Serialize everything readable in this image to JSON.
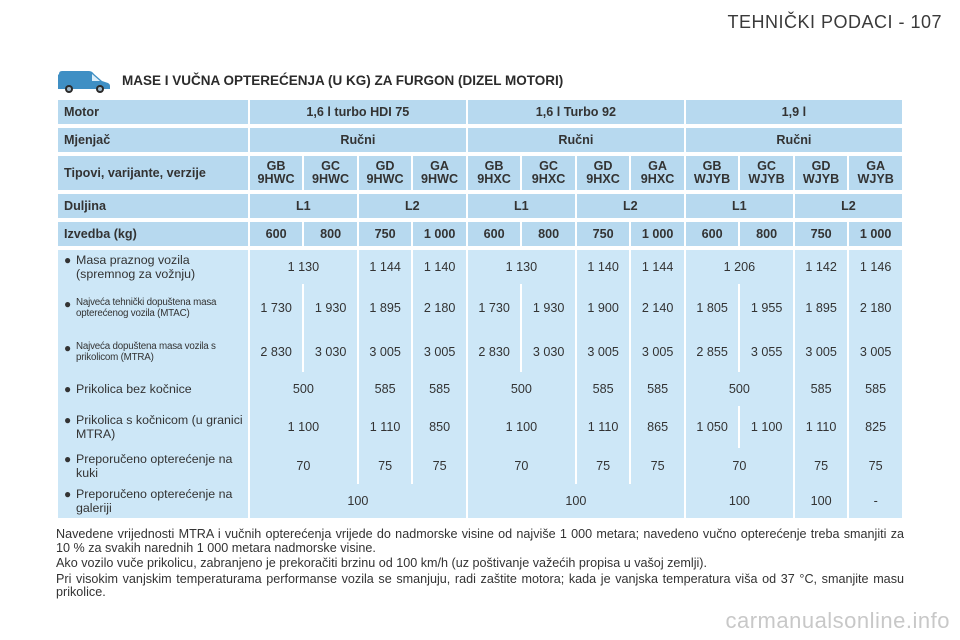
{
  "page_header": "TEHNIČKI PODACI - 107",
  "section_title": "MASE I VUČNA OPTEREĆENJA (U KG) ZA FURGON (DIZEL MOTORI)",
  "icons": {
    "van": "van-icon"
  },
  "colors": {
    "header_row": "#b7d9ef",
    "data_row": "#cde7f7"
  },
  "table": {
    "motor": {
      "label": "Motor",
      "values": [
        "1,6 l turbo HDI 75",
        "1,6 l Turbo 92",
        "1,9 l"
      ]
    },
    "mjenjac": {
      "label": "Mjenjač",
      "values": [
        "Ručni",
        "Ručni",
        "Ručni"
      ]
    },
    "tipovi": {
      "label": "Tipovi, varijante, verzije",
      "values": [
        [
          "GB",
          "9HWC"
        ],
        [
          "GC",
          "9HWC"
        ],
        [
          "GD",
          "9HWC"
        ],
        [
          "GA",
          "9HWC"
        ],
        [
          "GB",
          "9HXC"
        ],
        [
          "GC",
          "9HXC"
        ],
        [
          "GD",
          "9HXC"
        ],
        [
          "GA",
          "9HXC"
        ],
        [
          "GB",
          "WJYB"
        ],
        [
          "GC",
          "WJYB"
        ],
        [
          "GD",
          "WJYB"
        ],
        [
          "GA",
          "WJYB"
        ]
      ]
    },
    "duljina": {
      "label": "Duljina",
      "values": [
        "L1",
        "L2",
        "L1",
        "L2",
        "L1",
        "L2"
      ]
    },
    "izvedba": {
      "label": "Izvedba (kg)",
      "values": [
        "600",
        "800",
        "750",
        "1 000",
        "600",
        "800",
        "750",
        "1 000",
        "600",
        "800",
        "750",
        "1 000"
      ]
    },
    "masa_praznog": {
      "label": "Masa praznog vozila (spremnog za vožnju)",
      "values": [
        "1 130",
        "1 144",
        "1 140",
        "1 130",
        "1 140",
        "1 144",
        "1 206",
        "1 142",
        "1 146"
      ]
    },
    "mtac": {
      "label": "Najveća tehnički dopuštena masa opterećenog vozila (MTAC)",
      "values": [
        "1 730",
        "1 930",
        "1 895",
        "2 180",
        "1 730",
        "1 930",
        "1 900",
        "2 140",
        "1 805",
        "1 955",
        "1 895",
        "2 180"
      ]
    },
    "mtra": {
      "label": "Najveća dopuštena masa vozila s prikolicom (MTRA)",
      "values": [
        "2 830",
        "3 030",
        "3 005",
        "3 005",
        "2 830",
        "3 030",
        "3 005",
        "3 005",
        "2 855",
        "3 055",
        "3 005",
        "3 005"
      ]
    },
    "bez_kocnice": {
      "label": "Prikolica bez kočnice",
      "values": [
        "500",
        "585",
        "585",
        "500",
        "585",
        "585",
        "500",
        "585",
        "585"
      ]
    },
    "s_kocnicom": {
      "label": "Prikolica s kočnicom (u granici MTRA)",
      "values": [
        "1 100",
        "1 110",
        "850",
        "1 100",
        "1 110",
        "865",
        "1 050",
        "1 100",
        "1 110",
        "825"
      ]
    },
    "kuka": {
      "label": "Preporučeno opterećenje na kuki",
      "values": [
        "70",
        "75",
        "75",
        "70",
        "75",
        "75",
        "70",
        "75",
        "75"
      ]
    },
    "galerija": {
      "label": "Preporučeno opterećenje na galeriji",
      "values": [
        "100",
        "100",
        "100",
        "100",
        "-"
      ]
    }
  },
  "notes": [
    "Navedene vrijednosti MTRA i vučnih opterećenja vrijede do nadmorske visine od najviše 1 000 metara; navedeno vučno opterećenje treba smanjiti za 10 % za svakih narednih 1 000 metara nadmorske visine.",
    "Ako vozilo vuče prikolicu, zabranjeno je prekoračiti brzinu od 100 km/h (uz poštivanje važećih propisa u vašoj zemlji).",
    "Pri visokim vanjskim temperaturama performanse vozila se smanjuju, radi zaštite motora; kada je vanjska temperatura viša od 37 °C, smanjite masu prikolice."
  ],
  "watermark": "carmanualsonline.info"
}
